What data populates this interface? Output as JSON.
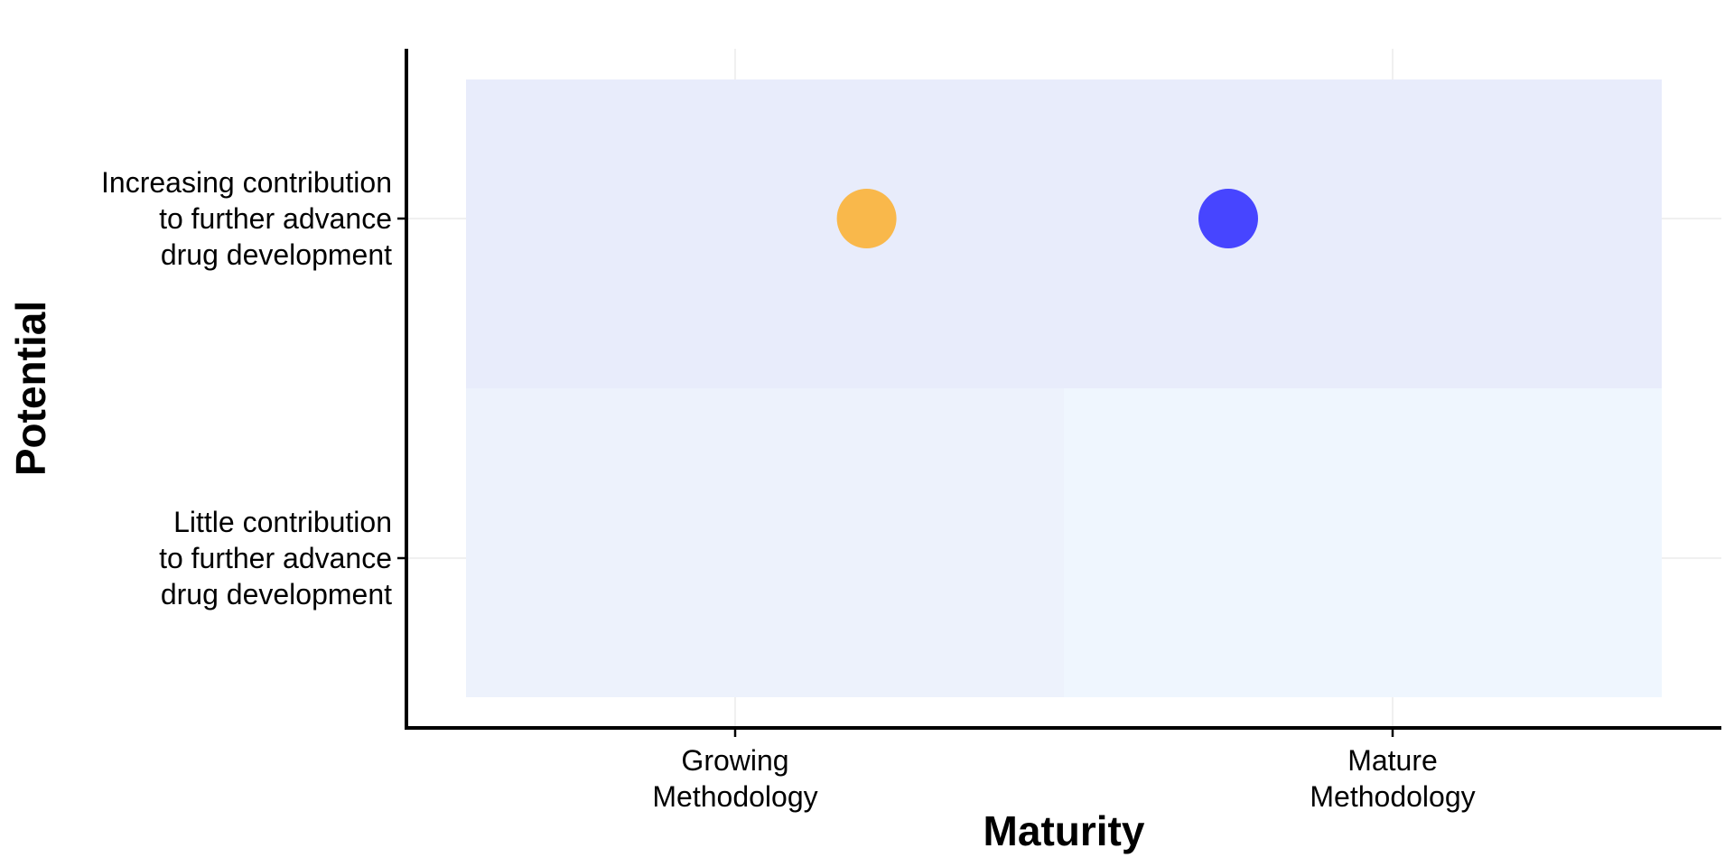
{
  "chart_data": {
    "type": "scatter",
    "title": "",
    "xlabel": "Maturity",
    "ylabel": "Potential",
    "x_categories": [
      [
        "Growing",
        "Methodology"
      ],
      [
        "Mature",
        "Methodology"
      ]
    ],
    "y_categories": [
      [
        "Little contribution",
        "to further advance",
        "drug development"
      ],
      [
        "Increasing contribution",
        "to further advance",
        "drug development"
      ]
    ],
    "xlim": [
      0.5,
      2.5
    ],
    "ylim": [
      0.5,
      2.5
    ],
    "grid": true,
    "legend": "none",
    "regions": [
      {
        "x_range": [
          0.5,
          2.5
        ],
        "y_range": [
          1.5,
          2.5
        ],
        "color": "#E8ECFB"
      },
      {
        "x_range": [
          0.5,
          1.5
        ],
        "y_range": [
          0.5,
          1.5
        ],
        "color": "#EDF2FC"
      },
      {
        "x_range": [
          1.5,
          2.5
        ],
        "y_range": [
          0.5,
          1.5
        ],
        "color": "#EFF6FE"
      }
    ],
    "points": [
      {
        "x": 1.2,
        "y": 2,
        "color": "#F9B84B"
      },
      {
        "x": 1.75,
        "y": 2,
        "color": "#4745FF"
      }
    ]
  }
}
